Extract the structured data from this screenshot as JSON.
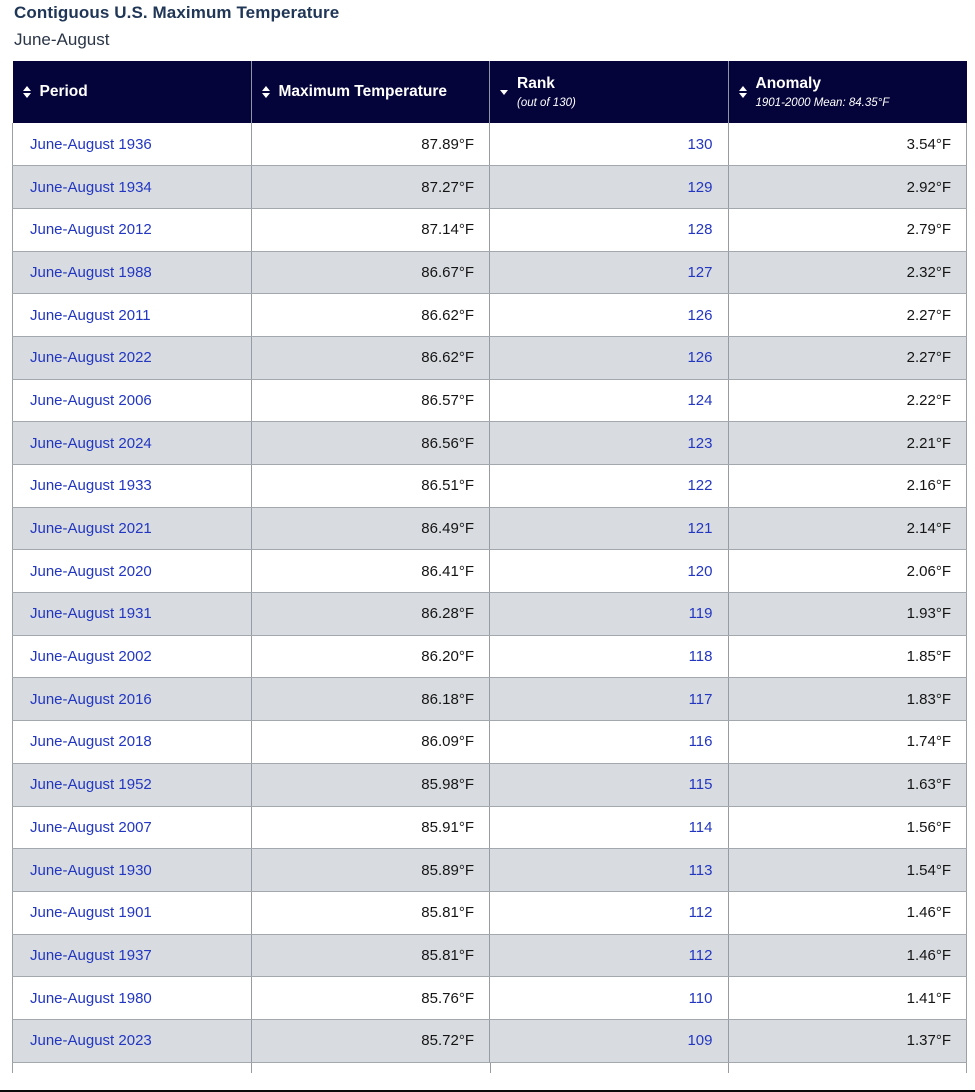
{
  "page": {
    "title": "Contiguous U.S. Maximum Temperature",
    "subtitle": "June-August"
  },
  "table": {
    "columns": [
      {
        "label": "Period",
        "sub": "",
        "sort": "sortable"
      },
      {
        "label": "Maximum Temperature",
        "sub": "",
        "sort": "sortable"
      },
      {
        "label": "Rank",
        "sub": "(out of 130)",
        "sort": "sorted-desc"
      },
      {
        "label": "Anomaly",
        "sub": "1901-2000 Mean: 84.35°F",
        "sort": "sortable"
      }
    ],
    "rows": [
      {
        "period": "June-August 1936",
        "max_temp": "87.89°F",
        "rank": "130",
        "anomaly": "3.54°F"
      },
      {
        "period": "June-August 1934",
        "max_temp": "87.27°F",
        "rank": "129",
        "anomaly": "2.92°F"
      },
      {
        "period": "June-August 2012",
        "max_temp": "87.14°F",
        "rank": "128",
        "anomaly": "2.79°F"
      },
      {
        "period": "June-August 1988",
        "max_temp": "86.67°F",
        "rank": "127",
        "anomaly": "2.32°F"
      },
      {
        "period": "June-August 2011",
        "max_temp": "86.62°F",
        "rank": "126",
        "anomaly": "2.27°F"
      },
      {
        "period": "June-August 2022",
        "max_temp": "86.62°F",
        "rank": "126",
        "anomaly": "2.27°F"
      },
      {
        "period": "June-August 2006",
        "max_temp": "86.57°F",
        "rank": "124",
        "anomaly": "2.22°F"
      },
      {
        "period": "June-August 2024",
        "max_temp": "86.56°F",
        "rank": "123",
        "anomaly": "2.21°F"
      },
      {
        "period": "June-August 1933",
        "max_temp": "86.51°F",
        "rank": "122",
        "anomaly": "2.16°F"
      },
      {
        "period": "June-August 2021",
        "max_temp": "86.49°F",
        "rank": "121",
        "anomaly": "2.14°F"
      },
      {
        "period": "June-August 2020",
        "max_temp": "86.41°F",
        "rank": "120",
        "anomaly": "2.06°F"
      },
      {
        "period": "June-August 1931",
        "max_temp": "86.28°F",
        "rank": "119",
        "anomaly": "1.93°F"
      },
      {
        "period": "June-August 2002",
        "max_temp": "86.20°F",
        "rank": "118",
        "anomaly": "1.85°F"
      },
      {
        "period": "June-August 2016",
        "max_temp": "86.18°F",
        "rank": "117",
        "anomaly": "1.83°F"
      },
      {
        "period": "June-August 2018",
        "max_temp": "86.09°F",
        "rank": "116",
        "anomaly": "1.74°F"
      },
      {
        "period": "June-August 1952",
        "max_temp": "85.98°F",
        "rank": "115",
        "anomaly": "1.63°F"
      },
      {
        "period": "June-August 2007",
        "max_temp": "85.91°F",
        "rank": "114",
        "anomaly": "1.56°F"
      },
      {
        "period": "June-August 1930",
        "max_temp": "85.89°F",
        "rank": "113",
        "anomaly": "1.54°F"
      },
      {
        "period": "June-August 1901",
        "max_temp": "85.81°F",
        "rank": "112",
        "anomaly": "1.46°F"
      },
      {
        "period": "June-August 1937",
        "max_temp": "85.81°F",
        "rank": "112",
        "anomaly": "1.46°F"
      },
      {
        "period": "June-August 1980",
        "max_temp": "85.76°F",
        "rank": "110",
        "anomaly": "1.41°F"
      },
      {
        "period": "June-August 2023",
        "max_temp": "85.72°F",
        "rank": "109",
        "anomaly": "1.37°F"
      }
    ]
  },
  "colors": {
    "header_bg": "#04043a",
    "header_text": "#ffffff",
    "link_blue": "#2236c2",
    "row_alt_bg": "#d8dce0",
    "row_bg": "#ffffff",
    "title_text": "#1f3656",
    "value_text": "#141414",
    "grid_line": "#9aa0a6"
  }
}
